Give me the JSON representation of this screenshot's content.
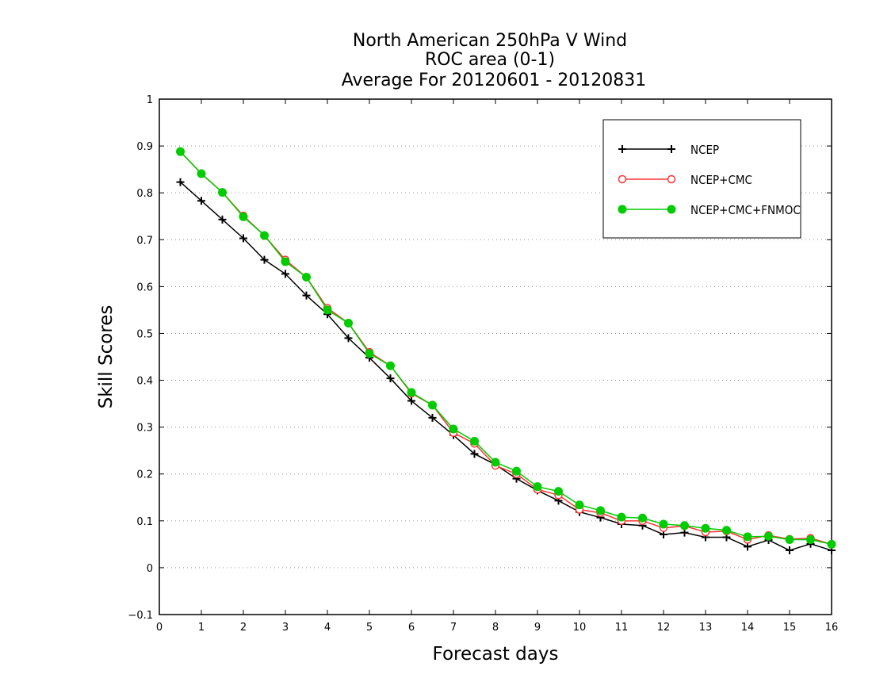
{
  "chart_data": {
    "type": "line",
    "title_lines": [
      "North American 250hPa V Wind",
      "ROC area (0-1)",
      "Average For 20120601 - 20120831"
    ],
    "xlabel": "Forecast days",
    "ylabel": "Skill Scores",
    "xlim": [
      0,
      16
    ],
    "ylim": [
      -0.1,
      1
    ],
    "x_ticks": [
      "0",
      "1",
      "2",
      "3",
      "4",
      "5",
      "6",
      "7",
      "8",
      "9",
      "10",
      "11",
      "12",
      "13",
      "14",
      "15",
      "16"
    ],
    "y_ticks": [
      "−0.1",
      "0",
      "0.1",
      "0.2",
      "0.3",
      "0.4",
      "0.5",
      "0.6",
      "0.7",
      "0.8",
      "0.9",
      "1"
    ],
    "grid": "horizontal dotted",
    "legend_position": "top-right",
    "x": [
      0.5,
      1,
      1.5,
      2,
      2.5,
      3,
      3.5,
      4,
      4.5,
      5,
      5.5,
      6,
      6.5,
      7,
      7.5,
      8,
      8.5,
      9,
      9.5,
      10,
      10.5,
      11,
      11.5,
      12,
      12.5,
      13,
      13.5,
      14,
      14.5,
      15,
      15.5,
      16
    ],
    "series": [
      {
        "name": "NCEP",
        "color": "#000000",
        "marker": "plus",
        "values": [
          0.823,
          0.783,
          0.743,
          0.703,
          0.657,
          0.627,
          0.581,
          0.541,
          0.49,
          0.448,
          0.404,
          0.356,
          0.32,
          0.283,
          0.243,
          0.22,
          0.19,
          0.165,
          0.143,
          0.119,
          0.107,
          0.093,
          0.09,
          0.071,
          0.075,
          0.065,
          0.065,
          0.045,
          0.059,
          0.037,
          0.051,
          0.037
        ]
      },
      {
        "name": "NCEP+CMC",
        "color": "#ff3333",
        "marker": "open-circle",
        "values": [
          0.888,
          0.841,
          0.801,
          0.751,
          0.709,
          0.657,
          0.62,
          0.554,
          0.522,
          0.46,
          0.431,
          0.372,
          0.347,
          0.288,
          0.265,
          0.218,
          0.2,
          0.167,
          0.155,
          0.124,
          0.117,
          0.1,
          0.1,
          0.085,
          0.089,
          0.076,
          0.078,
          0.06,
          0.069,
          0.061,
          0.063,
          0.05
        ]
      },
      {
        "name": "NCEP+CMC+FNMOC",
        "color": "#00cc00",
        "marker": "filled-circle",
        "values": [
          0.888,
          0.841,
          0.801,
          0.749,
          0.709,
          0.653,
          0.62,
          0.55,
          0.522,
          0.457,
          0.431,
          0.374,
          0.347,
          0.296,
          0.27,
          0.225,
          0.206,
          0.173,
          0.163,
          0.134,
          0.122,
          0.108,
          0.106,
          0.093,
          0.09,
          0.084,
          0.08,
          0.066,
          0.067,
          0.06,
          0.06,
          0.05
        ]
      }
    ]
  }
}
